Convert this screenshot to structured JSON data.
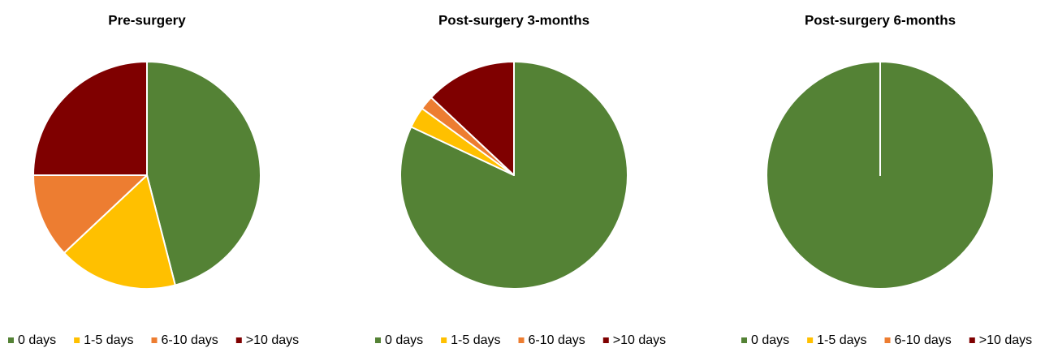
{
  "chart_data": [
    {
      "type": "pie",
      "title": "Pre-surgery",
      "categories": [
        "0 days",
        "1-5 days",
        "6-10 days",
        ">10 days"
      ],
      "values": [
        46,
        17,
        12,
        25
      ],
      "colors": [
        "#548235",
        "#ffc000",
        "#ed7d31",
        "#7f0000"
      ]
    },
    {
      "type": "pie",
      "title": "Post-surgery 3-months",
      "categories": [
        "0 days",
        "1-5 days",
        "6-10 days",
        ">10 days"
      ],
      "values": [
        82,
        3,
        2,
        13
      ],
      "colors": [
        "#548235",
        "#ffc000",
        "#ed7d31",
        "#7f0000"
      ]
    },
    {
      "type": "pie",
      "title": "Post-surgery 6-months",
      "categories": [
        "0 days",
        "1-5 days",
        "6-10 days",
        ">10 days"
      ],
      "values": [
        100,
        0,
        0,
        0
      ],
      "colors": [
        "#548235",
        "#ffc000",
        "#ed7d31",
        "#7f0000"
      ]
    }
  ]
}
